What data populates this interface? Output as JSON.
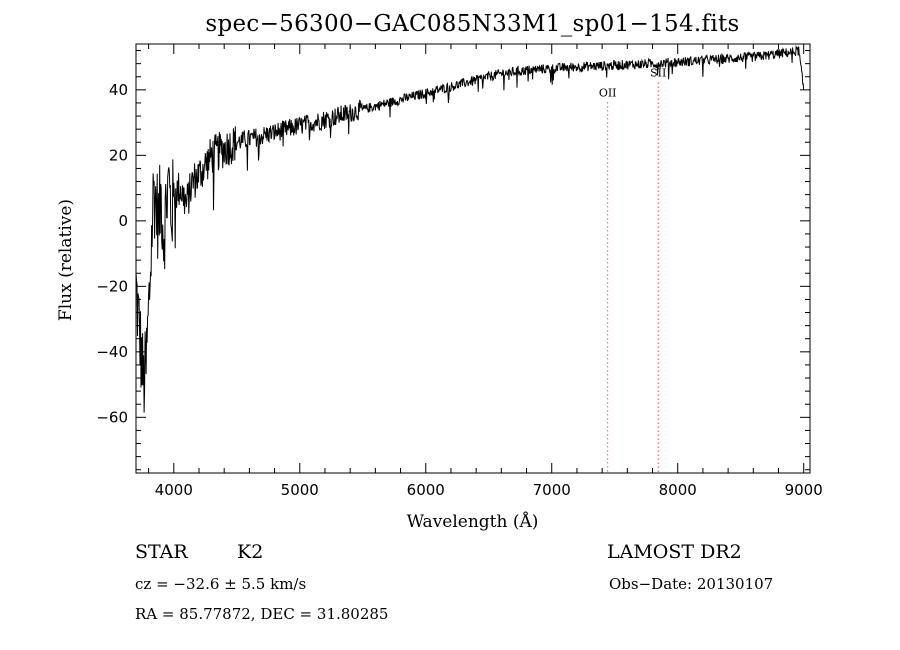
{
  "chart_data": {
    "type": "line",
    "title": "spec−56300−GAC085N33M1_sp01−154.fits",
    "xlabel": "Wavelength (Å)",
    "ylabel": "Flux (relative)",
    "xlim": [
      3700,
      9050
    ],
    "ylim": [
      -77,
      54
    ],
    "xticks": [
      4000,
      5000,
      6000,
      7000,
      8000,
      9000
    ],
    "xtick_labels": [
      "4000",
      "5000",
      "6000",
      "7000",
      "8000",
      "9000"
    ],
    "yticks": [
      -60,
      -40,
      -20,
      0,
      20,
      40
    ],
    "ytick_labels": [
      "−60",
      "−40",
      "−20",
      "0",
      "20",
      "40"
    ],
    "series": [
      {
        "name": "spectrum",
        "color": "#000000",
        "x": [
          3700,
          3720,
          3740,
          3760,
          3780,
          3800,
          3820,
          3840,
          3860,
          3880,
          3900,
          3920,
          3940,
          3960,
          3980,
          4000,
          4050,
          4100,
          4150,
          4200,
          4250,
          4300,
          4350,
          4400,
          4450,
          4500,
          4600,
          4700,
          4800,
          4900,
          5000,
          5100,
          5200,
          5300,
          5400,
          5500,
          5600,
          5700,
          5800,
          5900,
          6000,
          6100,
          6200,
          6300,
          6400,
          6500,
          6600,
          6700,
          6800,
          6900,
          7000,
          7100,
          7200,
          7300,
          7400,
          7500,
          7600,
          7700,
          7800,
          7900,
          8000,
          8100,
          8200,
          8300,
          8400,
          8500,
          8600,
          8700,
          8800,
          8900,
          8960,
          9000
        ],
        "y": [
          -20,
          -30,
          -40,
          -50,
          -45,
          -28,
          -10,
          10,
          5,
          0,
          8,
          -5,
          5,
          12,
          2,
          8,
          10,
          5,
          12,
          14,
          17,
          20,
          21,
          22,
          23,
          24,
          25,
          26,
          27,
          28,
          29,
          30,
          31,
          32,
          33,
          34,
          35,
          36,
          37,
          38,
          39,
          40,
          41,
          42,
          43,
          44,
          45,
          45.5,
          46,
          46.3,
          46.5,
          46.8,
          47,
          47.2,
          47.3,
          47.5,
          47.7,
          47.8,
          48,
          48.2,
          48.5,
          48.7,
          49,
          49.3,
          49.5,
          49.8,
          50,
          50.5,
          51,
          51.5,
          52,
          40
        ]
      }
    ],
    "line_markers": [
      {
        "label": "OII",
        "x": 7444,
        "label_y": 38,
        "color": "#ff0000"
      },
      {
        "label": "SII",
        "x": 7845,
        "label_y": 44,
        "color": "#ff0000"
      }
    ]
  },
  "info": {
    "class": "STAR",
    "subclass": "K2",
    "survey": "LAMOST DR2",
    "cz": "cz = −32.6 ± 5.5 km/s",
    "obs_date": "Obs−Date: 20130107",
    "coords": "RA =  85.77872, DEC =  31.80285"
  }
}
